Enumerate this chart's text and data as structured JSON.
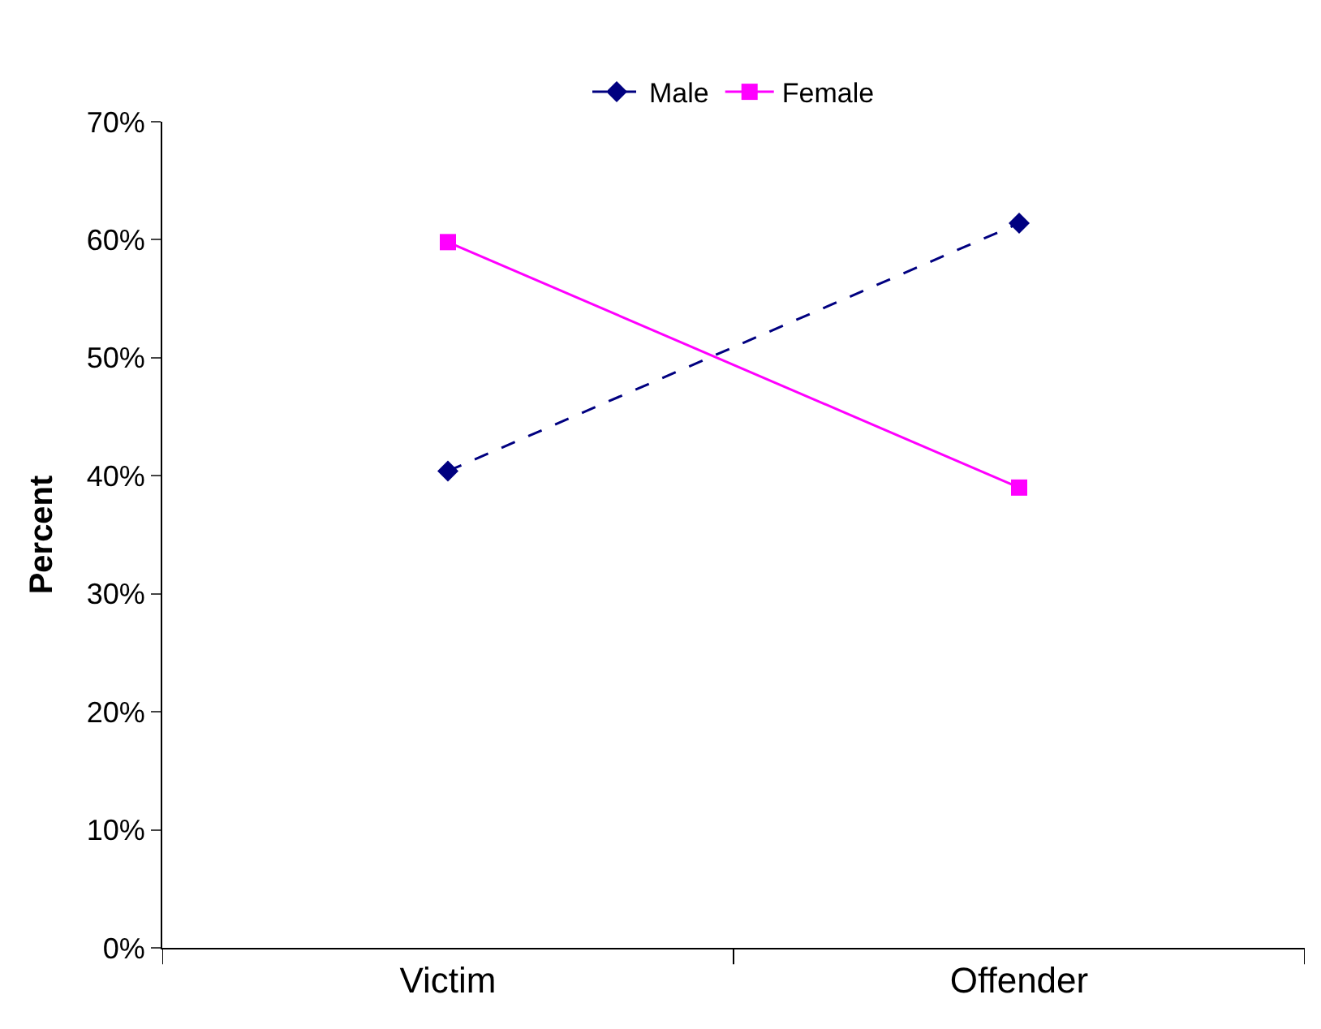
{
  "chart_data": {
    "type": "line",
    "ylabel": "Percent",
    "categories": [
      "Victim",
      "Offender"
    ],
    "series": [
      {
        "name": "Male",
        "color": "#000080",
        "values": [
          40.4,
          61.4
        ],
        "marker": "diamond",
        "line_style": "dashed"
      },
      {
        "name": "Female",
        "color": "#ff00ff",
        "values": [
          59.8,
          39.0
        ],
        "marker": "square",
        "line_style": "solid"
      }
    ],
    "ylim": [
      0,
      70
    ],
    "yticks": [
      {
        "value": 0,
        "label": "0%"
      },
      {
        "value": 10,
        "label": "10%"
      },
      {
        "value": 20,
        "label": "20%"
      },
      {
        "value": 30,
        "label": "30%"
      },
      {
        "value": 40,
        "label": "40%"
      },
      {
        "value": 50,
        "label": "50%"
      },
      {
        "value": 60,
        "label": "60%"
      },
      {
        "value": 70,
        "label": "70%"
      }
    ],
    "legend": "top"
  }
}
